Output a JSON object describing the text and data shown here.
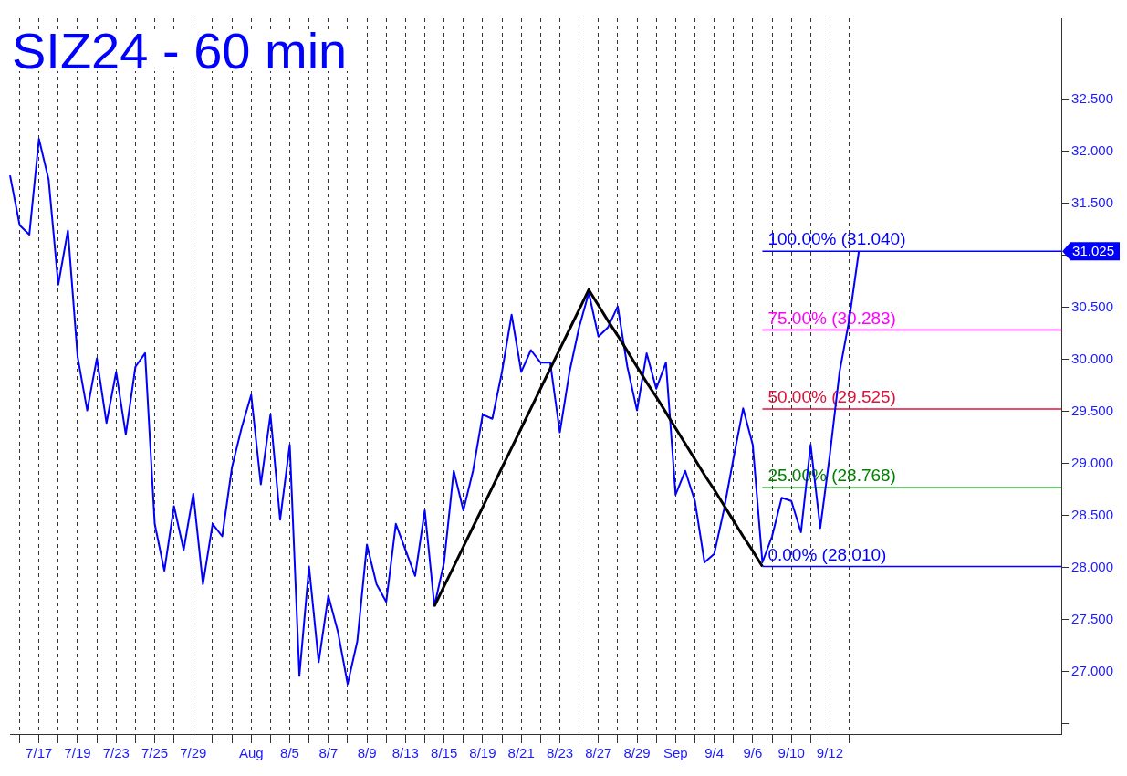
{
  "chart_data": {
    "type": "line",
    "title": "SIZ24 - 60 min",
    "categories": [
      null,
      null,
      null,
      "7/17",
      null,
      null,
      null,
      "7/19",
      null,
      null,
      null,
      "7/23",
      null,
      null,
      null,
      "7/25",
      null,
      null,
      null,
      "7/29",
      null,
      null,
      null,
      null,
      null,
      "Aug",
      null,
      null,
      null,
      "8/5",
      null,
      null,
      null,
      "8/7",
      null,
      null,
      null,
      "8/9",
      null,
      null,
      null,
      "8/13",
      null,
      null,
      null,
      "8/15",
      null,
      null,
      null,
      "8/19",
      null,
      null,
      null,
      "8/21",
      null,
      null,
      null,
      "8/23",
      null,
      null,
      null,
      "8/27",
      null,
      null,
      null,
      "8/29",
      null,
      null,
      null,
      "Sep",
      null,
      null,
      null,
      "9/4",
      null,
      null,
      null,
      "9/6",
      null,
      null,
      null,
      "9/10",
      null,
      null,
      null,
      "9/12",
      null,
      null,
      null,
      null,
      null,
      null,
      null,
      null,
      null,
      null,
      null,
      null,
      null,
      null,
      null,
      null,
      null,
      null,
      null,
      null,
      null,
      null,
      null,
      null
    ],
    "ylim": [
      26.4,
      33.28
    ],
    "yticks": [
      {
        "value": 26.5,
        "label": null
      },
      {
        "value": 27,
        "label": "27.000"
      },
      {
        "value": 27.5,
        "label": "27.500"
      },
      {
        "value": 28,
        "label": "28.000"
      },
      {
        "value": 28.5,
        "label": "28.500"
      },
      {
        "value": 29,
        "label": "29.000"
      },
      {
        "value": 29.5,
        "label": "29.500"
      },
      {
        "value": 30,
        "label": "30.000"
      },
      {
        "value": 30.5,
        "label": "30.500"
      },
      {
        "value": 31,
        "label": null
      },
      {
        "value": 31.5,
        "label": "31.500"
      },
      {
        "value": 32,
        "label": "32.000"
      },
      {
        "value": 32.5,
        "label": "32.500"
      }
    ],
    "grid": "x",
    "legend": false,
    "marker": "none",
    "line_style": "solid",
    "series": [
      {
        "type": "line",
        "color": "#0000ff",
        "values": [
          31.77,
          31.29,
          31.2,
          32.12,
          31.73,
          30.72,
          31.24,
          30.03,
          29.51,
          30.01,
          29.39,
          29.88,
          29.28,
          29.93,
          30.06,
          28.42,
          27.97,
          28.59,
          28.17,
          28.71,
          27.84,
          28.42,
          28.3,
          28.96,
          29.34,
          29.66,
          28.8,
          29.47,
          28.46,
          29.18,
          26.96,
          28.01,
          27.09,
          27.73,
          27.38,
          26.88,
          27.29,
          28.22,
          27.84,
          27.67,
          28.42,
          28.17,
          27.92,
          28.55,
          27.63,
          28.05,
          28.93,
          28.55,
          28.93,
          29.47,
          29.43,
          29.88,
          30.43,
          29.88,
          30.09,
          29.97,
          29.97,
          29.3,
          29.88,
          30.31,
          30.64,
          30.22,
          30.31,
          30.51,
          29.93,
          29.51,
          30.06,
          29.72,
          29.97,
          28.7,
          28.93,
          28.64,
          28.05,
          28.13,
          28.55,
          29.05,
          29.53,
          29.18,
          28.05,
          28.3,
          28.67,
          28.64,
          28.34,
          29.18,
          28.38,
          29.09,
          29.88,
          30.38,
          31.04,
          null,
          null,
          null,
          null,
          null,
          null,
          null,
          null,
          null,
          null,
          null,
          null,
          null,
          null,
          null,
          null,
          null,
          null,
          null,
          null,
          null
        ]
      },
      {
        "type": "line",
        "color": "#000000",
        "values": [
          null,
          null,
          null,
          null,
          null,
          null,
          null,
          null,
          null,
          null,
          null,
          null,
          null,
          null,
          null,
          null,
          null,
          null,
          null,
          null,
          null,
          null,
          null,
          null,
          null,
          null,
          null,
          null,
          null,
          null,
          null,
          null,
          null,
          null,
          null,
          null,
          null,
          null,
          null,
          null,
          null,
          null,
          null,
          null,
          27.63,
          27.82,
          28.01,
          28.2,
          28.39,
          28.58,
          28.77,
          28.96,
          29.15,
          29.34,
          29.53,
          29.72,
          29.91,
          30.1,
          30.29,
          30.48,
          30.67,
          30.52,
          30.37,
          30.23,
          30.08,
          29.93,
          29.78,
          29.64,
          29.49,
          29.34,
          29.19,
          29.04,
          28.89,
          28.75,
          28.6,
          28.45,
          28.3,
          28.16,
          28.01,
          null,
          null,
          null,
          null,
          null,
          null,
          null,
          null,
          null,
          null,
          null,
          null,
          null,
          null,
          null,
          null,
          null,
          null,
          null,
          null,
          null,
          null,
          null,
          null,
          null,
          null,
          null,
          null,
          null,
          null,
          null
        ]
      }
    ],
    "ref_lines": [
      {
        "axis": "y",
        "value": 31.04,
        "label": "100.00% (31.040)",
        "color": "#0000ff"
      },
      {
        "axis": "y",
        "value": 30.283,
        "label": "75.00% (30.283)",
        "color": "#ff00ff"
      },
      {
        "axis": "y",
        "value": 29.525,
        "label": "50.00% (29.525)",
        "color": "#dc143c"
      },
      {
        "axis": "y",
        "value": 28.768,
        "label": "25.00% (28.768)",
        "color": "#008000"
      },
      {
        "axis": "y",
        "value": 28.01,
        "label": "0.00% (28.010)",
        "color": "#0000ff"
      }
    ],
    "annotations": [
      "31.025"
    ]
  }
}
